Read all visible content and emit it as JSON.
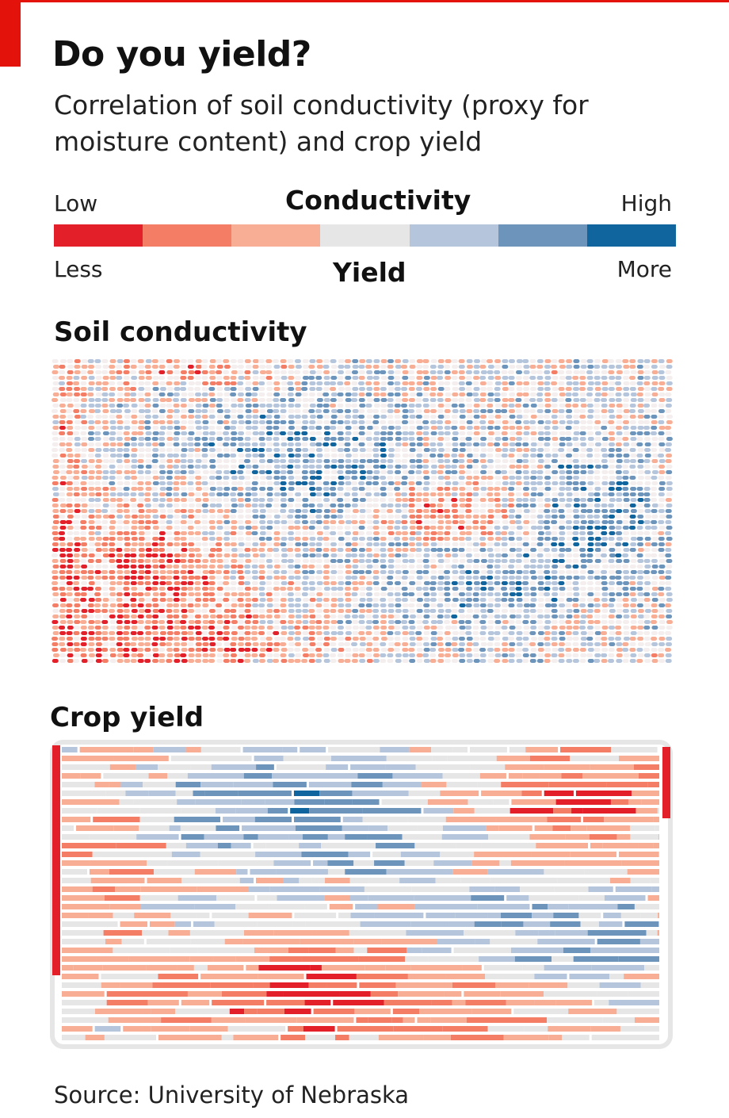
{
  "header": {
    "title": "Do you yield?",
    "subtitle": "Correlation of soil conductivity (proxy for moisture content) and crop yield"
  },
  "legend": {
    "top_title": "Conductivity",
    "top_low": "Low",
    "top_high": "High",
    "bottom_title": "Yield",
    "bottom_low": "Less",
    "bottom_high": "More",
    "colors": [
      "#e3202a",
      "#f47d66",
      "#f8ae95",
      "#e6e6e6",
      "#b5c5dc",
      "#6d95bc",
      "#10659e"
    ]
  },
  "source": "Source: University of Nebraska",
  "chart_data": [
    {
      "type": "heatmap",
      "title": "Soil conductivity",
      "scale": [
        "Low",
        "High"
      ],
      "value_levels": 7,
      "description_of_levels": "1 = Low conductivity (red) ... 7 = High conductivity (dark blue)"
    },
    {
      "type": "heatmap",
      "title": "Crop yield",
      "scale": [
        "Less",
        "More"
      ],
      "value_levels": 7,
      "description_of_levels": "1 = Less yield (red) ... 7 = More yield (dark blue)"
    }
  ]
}
